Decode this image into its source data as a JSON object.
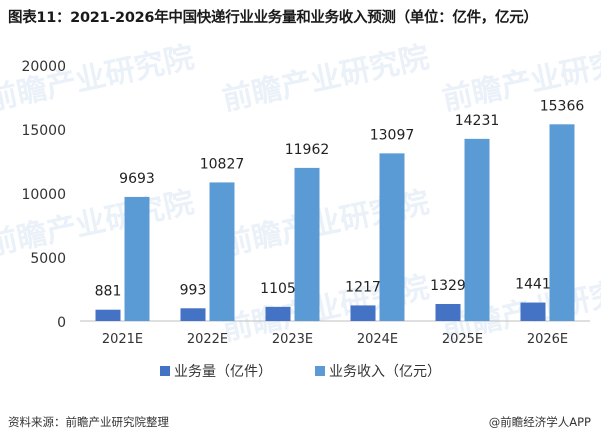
{
  "title": "图表11：2021-2026年中国快递行业业务量和业务收入预测（单位：亿件，亿元）",
  "source": "资料来源：前瞻产业研究院整理",
  "credit": "@前瞻经济学人APP",
  "watermark": "前瞻产业研究院",
  "chart_data": {
    "type": "bar",
    "categories": [
      "2021E",
      "2022E",
      "2023E",
      "2024E",
      "2025E",
      "2026E"
    ],
    "series": [
      {
        "name": "业务量（亿件）",
        "values": [
          881,
          993,
          1105,
          1217,
          1329,
          1441
        ],
        "color": "#4472c4"
      },
      {
        "name": "业务收入（亿元）",
        "values": [
          9693,
          10827,
          11962,
          13097,
          14231,
          15366
        ],
        "color": "#5b9bd5"
      }
    ],
    "ylim": [
      0,
      20000
    ],
    "yticks": [
      0,
      5000,
      10000,
      15000,
      20000
    ],
    "grid": false,
    "legend_position": "bottom"
  }
}
